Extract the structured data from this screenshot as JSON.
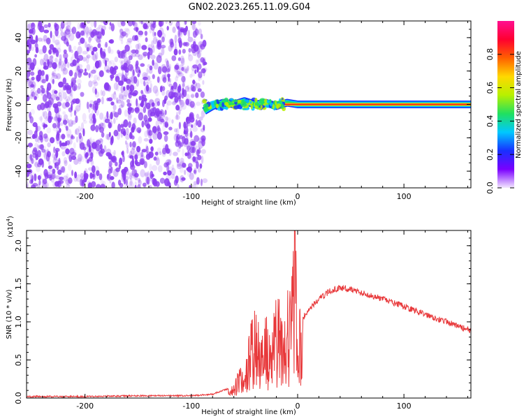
{
  "title": "GN02.2023.265.11.09.G04",
  "colors": {
    "noise": "#8a3cf0",
    "snr_line": "#e8383a",
    "colorbar": [
      "#f4e8ff",
      "#7a00ff",
      "#1830ff",
      "#00c8ff",
      "#20e060",
      "#b8f000",
      "#ffd800",
      "#ff6000",
      "#ff0030",
      "#ff1090"
    ]
  },
  "chart_data": [
    {
      "type": "heatmap",
      "title": "GN02.2023.265.11.09.G04",
      "xlabel": "Height of straight line (km)",
      "ylabel": "Frequency (Hz)",
      "xlim": [
        -255,
        163
      ],
      "ylim": [
        -50,
        50
      ],
      "xticks": [
        -200,
        -100,
        0,
        100
      ],
      "xtick_labels": [
        "-200",
        "-100",
        "0",
        "100"
      ],
      "yticks": [
        -40,
        -20,
        0,
        20,
        40
      ],
      "ytick_labels": [
        "-40",
        "-20",
        "0",
        "20",
        "40"
      ],
      "noise_region_x": [
        -255,
        -88
      ],
      "signal_track": [
        {
          "x": -88,
          "f": -4
        },
        {
          "x": -80,
          "f": -1
        },
        {
          "x": -70,
          "f": 1
        },
        {
          "x": -60,
          "f": 0
        },
        {
          "x": -50,
          "f": 2
        },
        {
          "x": -40,
          "f": 0
        },
        {
          "x": -30,
          "f": 1
        },
        {
          "x": -20,
          "f": -1
        },
        {
          "x": -10,
          "f": 1
        },
        {
          "x": 0,
          "f": 0
        },
        {
          "x": 50,
          "f": 0
        },
        {
          "x": 100,
          "f": 0
        },
        {
          "x": 163,
          "f": 0
        }
      ],
      "colorbar": {
        "label": "Normalized spectral amplitude",
        "ticks": [
          0.0,
          0.2,
          0.4,
          0.6,
          0.8
        ],
        "tick_labels": [
          "0.0",
          "0.2",
          "0.4",
          "0.6",
          "0.8"
        ],
        "range": [
          0,
          1
        ]
      },
      "grid": false
    },
    {
      "type": "line",
      "xlabel": "Height of straight line (km)",
      "ylabel": "SNR (10 * v/v)",
      "scale_label": "(x10",
      "scale_exp": "4",
      "scale_close": ")",
      "xlim": [
        -255,
        163
      ],
      "ylim": [
        0,
        2.2
      ],
      "xticks": [
        -200,
        -100,
        0,
        100
      ],
      "xtick_labels": [
        "-200",
        "-100",
        "0",
        "100"
      ],
      "yticks": [
        0.0,
        0.5,
        1.0,
        1.5,
        2.0
      ],
      "ytick_labels": [
        "0.0",
        "0.5",
        "1.0",
        "1.5",
        "2.0"
      ],
      "series": [
        {
          "x": [
            -255,
            -200,
            -150,
            -100,
            -80,
            -60,
            -55,
            -50,
            -45,
            -40,
            -35,
            -30,
            -25,
            -20,
            -15,
            -10,
            -5,
            -3,
            0,
            10,
            20,
            30,
            40,
            50,
            60,
            80,
            100,
            120,
            140,
            163
          ],
          "y": [
            0.02,
            0.02,
            0.03,
            0.03,
            0.05,
            0.15,
            0.35,
            0.3,
            0.8,
            1.0,
            0.75,
            0.95,
            0.6,
            1.3,
            0.9,
            1.2,
            1.4,
            2.2,
            0.95,
            1.15,
            1.3,
            1.4,
            1.45,
            1.43,
            1.38,
            1.3,
            1.2,
            1.1,
            1.0,
            0.88
          ]
        }
      ],
      "grid": false
    }
  ]
}
